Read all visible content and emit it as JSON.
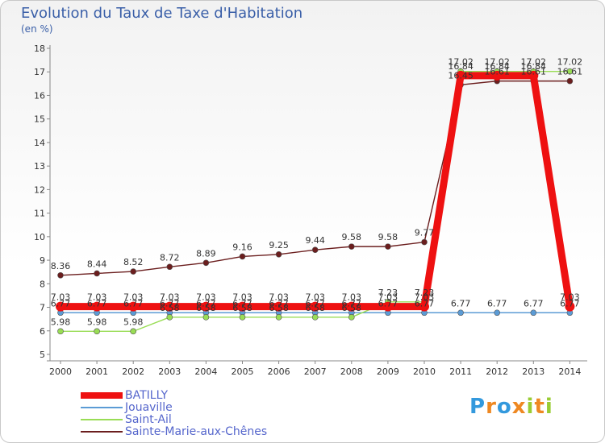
{
  "title": "Evolution du Taux de Taxe d'Habitation",
  "subtitle": "(en %)",
  "logo": "Proxiti",
  "chart_data": {
    "type": "line",
    "x": [
      "2000",
      "2001",
      "2002",
      "2003",
      "2004",
      "2005",
      "2006",
      "2007",
      "2008",
      "2009",
      "2010",
      "2011",
      "2012",
      "2013",
      "2014"
    ],
    "ylim": [
      5,
      18
    ],
    "yticks": [
      5,
      6,
      7,
      8,
      9,
      10,
      11,
      12,
      13,
      14,
      15,
      16,
      17,
      18
    ],
    "grid": "none",
    "legend_position": "bottom-left",
    "series": [
      {
        "name": "BATILLY",
        "color": "#ee1111",
        "values": [
          7.03,
          7.03,
          7.03,
          7.03,
          7.03,
          7.03,
          7.03,
          7.03,
          7.03,
          7.03,
          7.03,
          16.84,
          16.84,
          16.84,
          7.03
        ]
      },
      {
        "name": "Jouaville",
        "color": "#5b9bd5",
        "values": [
          6.77,
          6.77,
          6.77,
          6.77,
          6.77,
          6.77,
          6.77,
          6.77,
          6.77,
          6.77,
          6.77,
          6.77,
          6.77,
          6.77,
          6.77
        ]
      },
      {
        "name": "Saint-Ail",
        "color": "#99dd55",
        "values": [
          5.98,
          5.98,
          5.98,
          6.58,
          6.58,
          6.58,
          6.58,
          6.58,
          6.58,
          7.23,
          7.23,
          17.02,
          17.02,
          17.02,
          17.02
        ]
      },
      {
        "name": "Sainte-Marie-aux-Chênes",
        "color": "#6b1e1e",
        "values": [
          8.36,
          8.44,
          8.52,
          8.72,
          8.89,
          9.16,
          9.25,
          9.44,
          9.58,
          9.58,
          9.77,
          16.45,
          16.61,
          16.61,
          16.61
        ]
      }
    ]
  }
}
